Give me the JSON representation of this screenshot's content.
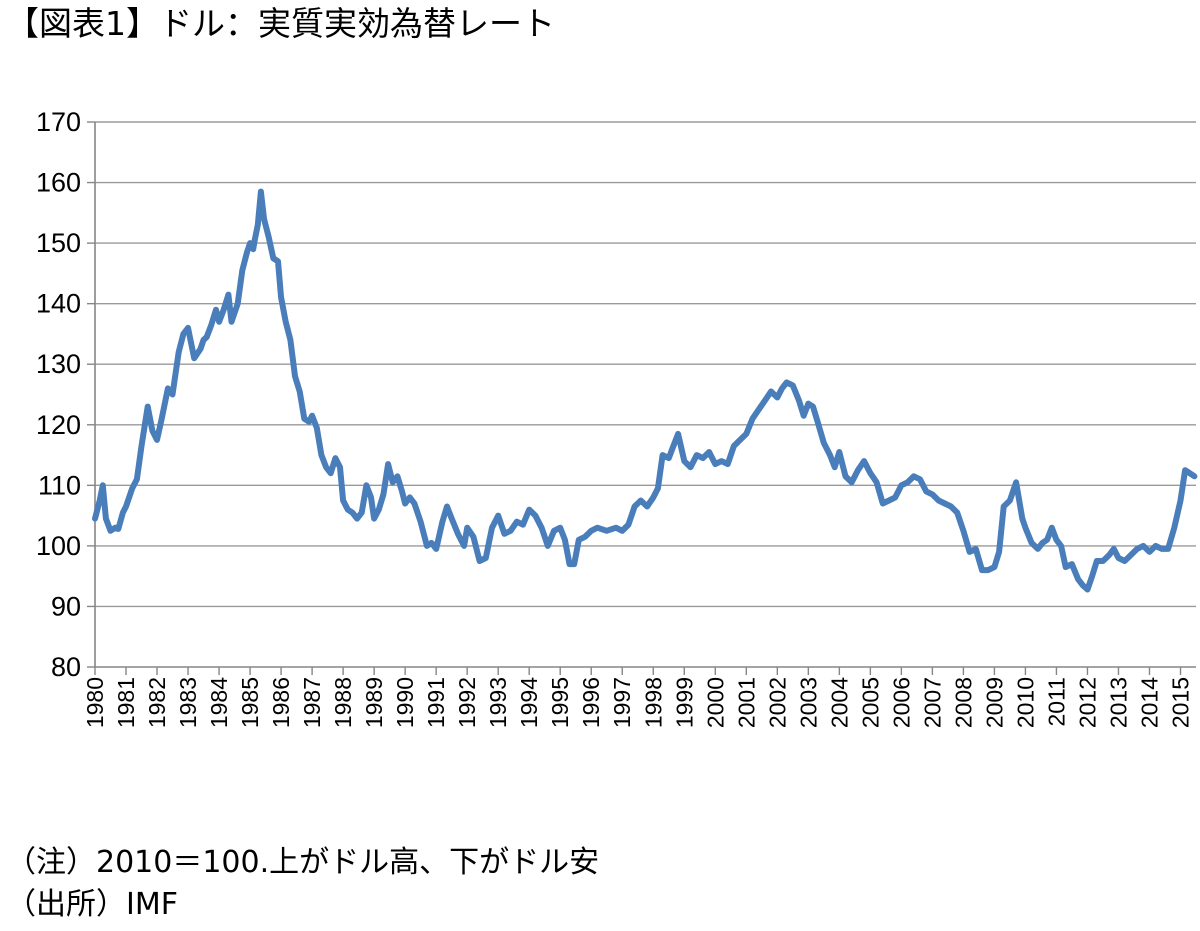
{
  "chart_data": {
    "type": "line",
    "title": "【図表1】ドル：実質実効為替レート",
    "xlabel": "",
    "ylabel": "",
    "ylim": [
      80,
      170
    ],
    "yticks": [
      80,
      90,
      100,
      110,
      120,
      130,
      140,
      150,
      160,
      170
    ],
    "xlim": [
      1980.0,
      2015.5
    ],
    "categories": [
      "1980",
      "1981",
      "1982",
      "1983",
      "1984",
      "1985",
      "1986",
      "1987",
      "1988",
      "1989",
      "1990",
      "1991",
      "1992",
      "1993",
      "1994",
      "1995",
      "1996",
      "1997",
      "1998",
      "1999",
      "2000",
      "2001",
      "2002",
      "2003",
      "2004",
      "2005",
      "2006",
      "2007",
      "2008",
      "2009",
      "2010",
      "2011",
      "2012",
      "2013",
      "2014",
      "2015"
    ],
    "grid": true,
    "line_color": "#4a7ebb",
    "series": [
      {
        "x": [
          1980.0,
          1980.15,
          1980.25,
          1980.35,
          1980.5,
          1980.65,
          1980.75,
          1980.9,
          1981.0,
          1981.2,
          1981.35,
          1981.5,
          1981.7,
          1981.85,
          1982.0,
          1982.15,
          1982.35,
          1982.5,
          1982.7,
          1982.85,
          1983.0,
          1983.2,
          1983.4,
          1983.5,
          1983.6,
          1983.75,
          1983.9,
          1984.0,
          1984.15,
          1984.3,
          1984.4,
          1984.6,
          1984.75,
          1984.9,
          1985.0,
          1985.1,
          1985.15,
          1985.25,
          1985.35,
          1985.45,
          1985.6,
          1985.75,
          1985.9,
          1986.0,
          1986.15,
          1986.3,
          1986.45,
          1986.6,
          1986.75,
          1986.9,
          1987.0,
          1987.15,
          1987.3,
          1987.45,
          1987.6,
          1987.75,
          1987.9,
          1988.0,
          1988.15,
          1988.3,
          1988.45,
          1988.6,
          1988.75,
          1988.9,
          1989.0,
          1989.15,
          1989.3,
          1989.45,
          1989.6,
          1989.75,
          1989.9,
          1990.0,
          1990.15,
          1990.3,
          1990.5,
          1990.7,
          1990.85,
          1991.0,
          1991.2,
          1991.35,
          1991.5,
          1991.7,
          1991.9,
          1992.0,
          1992.2,
          1992.4,
          1992.6,
          1992.8,
          1993.0,
          1993.2,
          1993.4,
          1993.6,
          1993.8,
          1994.0,
          1994.2,
          1994.4,
          1994.6,
          1994.8,
          1995.0,
          1995.15,
          1995.3,
          1995.45,
          1995.6,
          1995.8,
          1996.0,
          1996.2,
          1996.5,
          1996.8,
          1997.0,
          1997.2,
          1997.4,
          1997.6,
          1997.8,
          1998.0,
          1998.15,
          1998.3,
          1998.5,
          1998.65,
          1998.8,
          1999.0,
          1999.2,
          1999.4,
          1999.6,
          1999.8,
          2000.0,
          2000.2,
          2000.4,
          2000.6,
          2000.8,
          2001.0,
          2001.2,
          2001.4,
          2001.6,
          2001.8,
          2002.0,
          2002.15,
          2002.3,
          2002.5,
          2002.7,
          2002.85,
          2003.0,
          2003.15,
          2003.3,
          2003.5,
          2003.7,
          2003.85,
          2004.0,
          2004.2,
          2004.4,
          2004.6,
          2004.8,
          2005.0,
          2005.2,
          2005.4,
          2005.6,
          2005.8,
          2006.0,
          2006.2,
          2006.4,
          2006.6,
          2006.8,
          2007.0,
          2007.2,
          2007.4,
          2007.6,
          2007.8,
          2008.0,
          2008.2,
          2008.4,
          2008.6,
          2008.8,
          2009.0,
          2009.15,
          2009.3,
          2009.5,
          2009.7,
          2009.9,
          2010.0,
          2010.2,
          2010.4,
          2010.55,
          2010.7,
          2010.85,
          2011.0,
          2011.15,
          2011.3,
          2011.5,
          2011.7,
          2011.85,
          2012.0,
          2012.15,
          2012.3,
          2012.5,
          2012.7,
          2012.85,
          2013.0,
          2013.2,
          2013.4,
          2013.6,
          2013.8,
          2014.0,
          2014.2,
          2014.4,
          2014.6,
          2014.8,
          2015.0,
          2015.15,
          2015.3,
          2015.45
        ],
        "values": [
          104.5,
          107.5,
          110,
          104.5,
          102.5,
          103,
          102.8,
          105.5,
          106.5,
          109.5,
          111,
          116.5,
          123,
          119,
          117.5,
          121,
          126,
          125,
          132,
          135,
          136,
          131,
          132.5,
          134,
          134.5,
          136.5,
          139,
          137,
          139,
          141.5,
          137,
          140,
          145.5,
          148.5,
          150,
          149,
          150.5,
          153,
          158.5,
          154,
          151,
          147.5,
          147,
          141,
          137,
          134,
          128,
          125.5,
          121,
          120.5,
          121.5,
          119.5,
          115,
          113,
          112,
          114.5,
          113,
          107.5,
          106,
          105.5,
          104.5,
          105.5,
          110,
          108,
          104.5,
          106,
          108.5,
          113.5,
          110.5,
          111.5,
          109,
          107,
          108,
          107,
          104,
          100,
          100.5,
          99.5,
          104,
          106.5,
          104.5,
          102,
          100,
          103,
          101.5,
          97.5,
          98,
          103,
          105,
          102,
          102.5,
          104,
          103.5,
          106,
          105,
          103,
          100,
          102.5,
          103,
          101,
          97,
          97,
          101,
          101.5,
          102.5,
          103,
          102.5,
          103,
          102.5,
          103.5,
          106.5,
          107.5,
          106.5,
          108,
          109.5,
          115,
          114.5,
          116.5,
          118.5,
          114,
          113,
          115,
          114.5,
          115.5,
          113.5,
          114,
          113.5,
          116.5,
          117.5,
          118.5,
          121,
          122.5,
          124,
          125.5,
          124.5,
          126,
          127,
          126.5,
          124,
          121.5,
          123.5,
          123,
          120.5,
          117,
          115,
          113,
          115.5,
          111.5,
          110.5,
          112.5,
          114,
          112,
          110.5,
          107,
          107.5,
          108,
          110,
          110.5,
          111.5,
          111,
          109,
          108.5,
          107.5,
          107,
          106.5,
          105.5,
          102.5,
          99,
          99.5,
          96,
          96,
          96.5,
          99,
          106.5,
          107.5,
          110.5,
          104.5,
          103,
          100.5,
          99.5,
          100.5,
          101,
          103,
          101,
          100,
          96.5,
          97,
          94.5,
          93.5,
          92.8,
          95,
          97.5,
          97.5,
          98.5,
          99.5,
          98,
          97.5,
          98.5,
          99.5,
          100,
          99,
          100,
          99.5,
          99.5,
          103,
          107.5,
          112.5,
          112,
          111.5
        ]
      }
    ]
  },
  "notes": [
    "（注）2010＝100.上がドル高、下がドル安",
    "（出所）IMF"
  ]
}
